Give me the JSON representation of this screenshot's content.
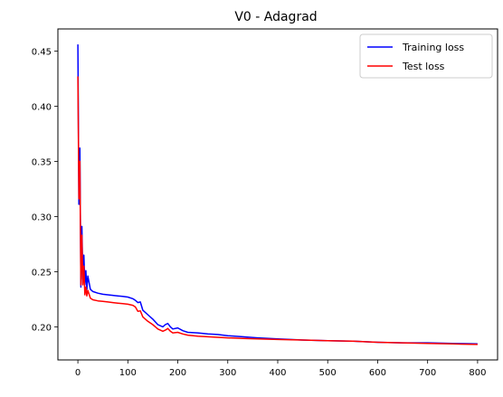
{
  "chart_data": {
    "type": "line",
    "title": "V0 - Adagrad",
    "xlabel": "",
    "ylabel": "",
    "xlim": [
      -40,
      840
    ],
    "ylim": [
      0.17,
      0.47
    ],
    "xticks": [
      0,
      100,
      200,
      300,
      400,
      500,
      600,
      700,
      800
    ],
    "xtick_labels": [
      "0",
      "100",
      "200",
      "300",
      "400",
      "500",
      "600",
      "700",
      "800"
    ],
    "yticks": [
      0.2,
      0.25,
      0.3,
      0.35,
      0.4,
      0.45
    ],
    "ytick_labels": [
      "0.20",
      "0.25",
      "0.30",
      "0.35",
      "0.40",
      "0.45"
    ],
    "grid": false,
    "legend_position": "top-right",
    "series": [
      {
        "name": "Training loss",
        "color": "#0000ff",
        "x": [
          0,
          2,
          4,
          6,
          8,
          10,
          12,
          14,
          16,
          18,
          20,
          25,
          30,
          40,
          50,
          60,
          70,
          80,
          90,
          100,
          110,
          115,
          120,
          125,
          130,
          140,
          150,
          160,
          170,
          175,
          180,
          185,
          190,
          200,
          210,
          220,
          240,
          260,
          280,
          300,
          330,
          360,
          400,
          450,
          500,
          550,
          600,
          650,
          700,
          750,
          800
        ],
        "y": [
          0.456,
          0.311,
          0.362,
          0.236,
          0.291,
          0.243,
          0.265,
          0.238,
          0.251,
          0.234,
          0.246,
          0.234,
          0.232,
          0.2305,
          0.2295,
          0.229,
          0.2285,
          0.228,
          0.2275,
          0.227,
          0.2255,
          0.224,
          0.222,
          0.2225,
          0.215,
          0.211,
          0.207,
          0.202,
          0.2,
          0.202,
          0.203,
          0.2,
          0.198,
          0.199,
          0.1965,
          0.195,
          0.1945,
          0.1935,
          0.193,
          0.192,
          0.191,
          0.19,
          0.189,
          0.188,
          0.1875,
          0.187,
          0.186,
          0.1855,
          0.1855,
          0.185,
          0.1845
        ]
      },
      {
        "name": "Test loss",
        "color": "#ff0000",
        "x": [
          0,
          2,
          4,
          6,
          8,
          10,
          12,
          14,
          16,
          18,
          20,
          25,
          30,
          40,
          50,
          60,
          70,
          80,
          90,
          100,
          110,
          115,
          120,
          125,
          130,
          140,
          150,
          160,
          170,
          175,
          180,
          185,
          190,
          200,
          210,
          220,
          240,
          260,
          280,
          300,
          330,
          360,
          400,
          450,
          500,
          550,
          600,
          650,
          700,
          750,
          800
        ],
        "y": [
          0.427,
          0.316,
          0.35,
          0.238,
          0.283,
          0.238,
          0.255,
          0.229,
          0.236,
          0.228,
          0.233,
          0.226,
          0.2245,
          0.2235,
          0.223,
          0.2225,
          0.222,
          0.2215,
          0.221,
          0.2205,
          0.2195,
          0.218,
          0.214,
          0.2145,
          0.209,
          0.205,
          0.202,
          0.198,
          0.196,
          0.197,
          0.1985,
          0.196,
          0.1945,
          0.195,
          0.1935,
          0.1925,
          0.1915,
          0.191,
          0.1905,
          0.19,
          0.1895,
          0.189,
          0.1885,
          0.188,
          0.1875,
          0.187,
          0.186,
          0.1855,
          0.185,
          0.1845,
          0.184
        ]
      }
    ]
  }
}
